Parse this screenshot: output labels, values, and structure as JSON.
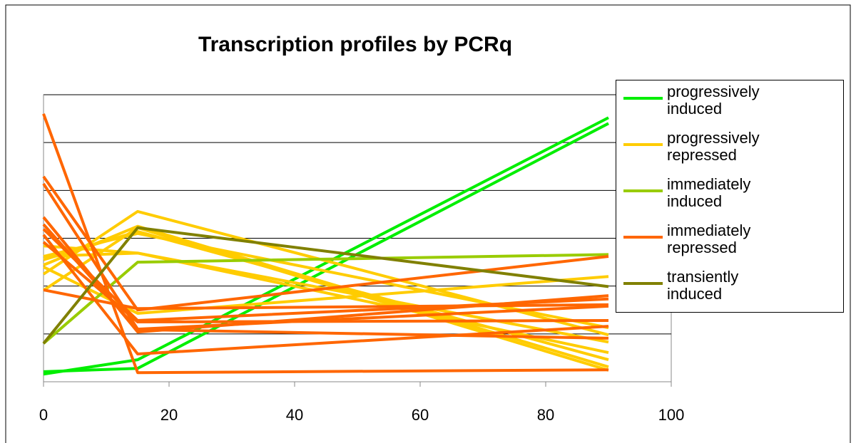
{
  "chart_data": {
    "type": "line",
    "title": "Transcription profiles by PCRq",
    "x": [
      0,
      15,
      90
    ],
    "xlim": [
      0,
      100
    ],
    "xticks": [
      0,
      20,
      40,
      60,
      80,
      100
    ],
    "ylim": [
      0,
      6
    ],
    "yticks": [
      0,
      1,
      2,
      3,
      4,
      5,
      6
    ],
    "grid": true,
    "legend": "right",
    "series": [
      {
        "name": "progressively induced",
        "color": "#00ee00",
        "lines": [
          [
            0.21,
            0.28,
            5.4
          ],
          [
            0.16,
            0.46,
            5.52
          ]
        ]
      },
      {
        "name": "progressively repressed",
        "color": "#ffcc00",
        "lines": [
          [
            2.25,
            3.56,
            0.98
          ],
          [
            2.44,
            3.25,
            0.31
          ],
          [
            2.55,
            3.14,
            0.46
          ],
          [
            2.84,
            2.69,
            0.83
          ],
          [
            1.91,
            3.22,
            0.24
          ],
          [
            2.62,
            2.69,
            0.61
          ],
          [
            2.4,
            1.43,
            2.2
          ],
          [
            2.62,
            3.1,
            1.13
          ]
        ]
      },
      {
        "name": "immediately induced",
        "color": "#99cc00",
        "lines": [
          [
            0.8,
            2.5,
            2.66
          ]
        ]
      },
      {
        "name": "immediately repressed",
        "color": "#ff6600",
        "lines": [
          [
            5.6,
            0.19,
            0.25
          ],
          [
            4.29,
            1.5,
            2.62
          ],
          [
            4.14,
            1.1,
            1.58
          ],
          [
            3.44,
            1.04,
            1.8
          ],
          [
            3.19,
            1.28,
            1.73
          ],
          [
            3.07,
            0.58,
            1.16
          ],
          [
            1.92,
            1.53,
            1.61
          ],
          [
            3.29,
            1.09,
            0.91
          ],
          [
            2.92,
            1.25,
            1.28
          ]
        ]
      },
      {
        "name": "transiently induced",
        "color": "#808000",
        "lines": [
          [
            0.8,
            3.22,
            1.99
          ]
        ]
      }
    ]
  }
}
